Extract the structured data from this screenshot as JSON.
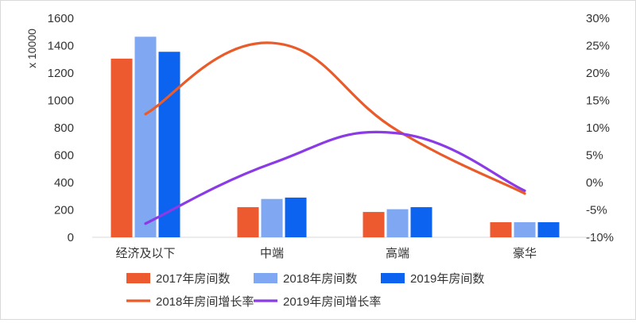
{
  "chart_data": {
    "type": "bar+line",
    "unit_label": "x 10000",
    "categories": [
      "经济及以下",
      "中端",
      "高端",
      "豪华"
    ],
    "y_left": {
      "ticks": [
        "1600",
        "1400",
        "1200",
        "1000",
        "800",
        "600",
        "400",
        "200",
        "0"
      ],
      "min": 0,
      "max": 1600
    },
    "y_right": {
      "ticks": [
        "30%",
        "25%",
        "20%",
        "15%",
        "10%",
        "5%",
        "0%",
        "-5%",
        "-10%"
      ],
      "min": -10,
      "max": 30
    },
    "bar_series": [
      {
        "name": "2017年房间数",
        "color": "#ee5a2f",
        "values": [
          1305,
          220,
          185,
          110
        ]
      },
      {
        "name": "2018年房间数",
        "color": "#7fa7f2",
        "values": [
          1465,
          280,
          205,
          110
        ]
      },
      {
        "name": "2019年房间数",
        "color": "#0b63f0",
        "values": [
          1355,
          290,
          220,
          110
        ]
      }
    ],
    "line_series": [
      {
        "name": "2018年房间增长率",
        "color": "#ea5b2a",
        "values": [
          12.5,
          25.5,
          9.5,
          -2
        ]
      },
      {
        "name": "2019年房间增长率",
        "color": "#8a3be6",
        "values": [
          -7.5,
          3.5,
          9,
          -1.5
        ]
      }
    ],
    "grid": false,
    "legend_position": "bottom"
  }
}
